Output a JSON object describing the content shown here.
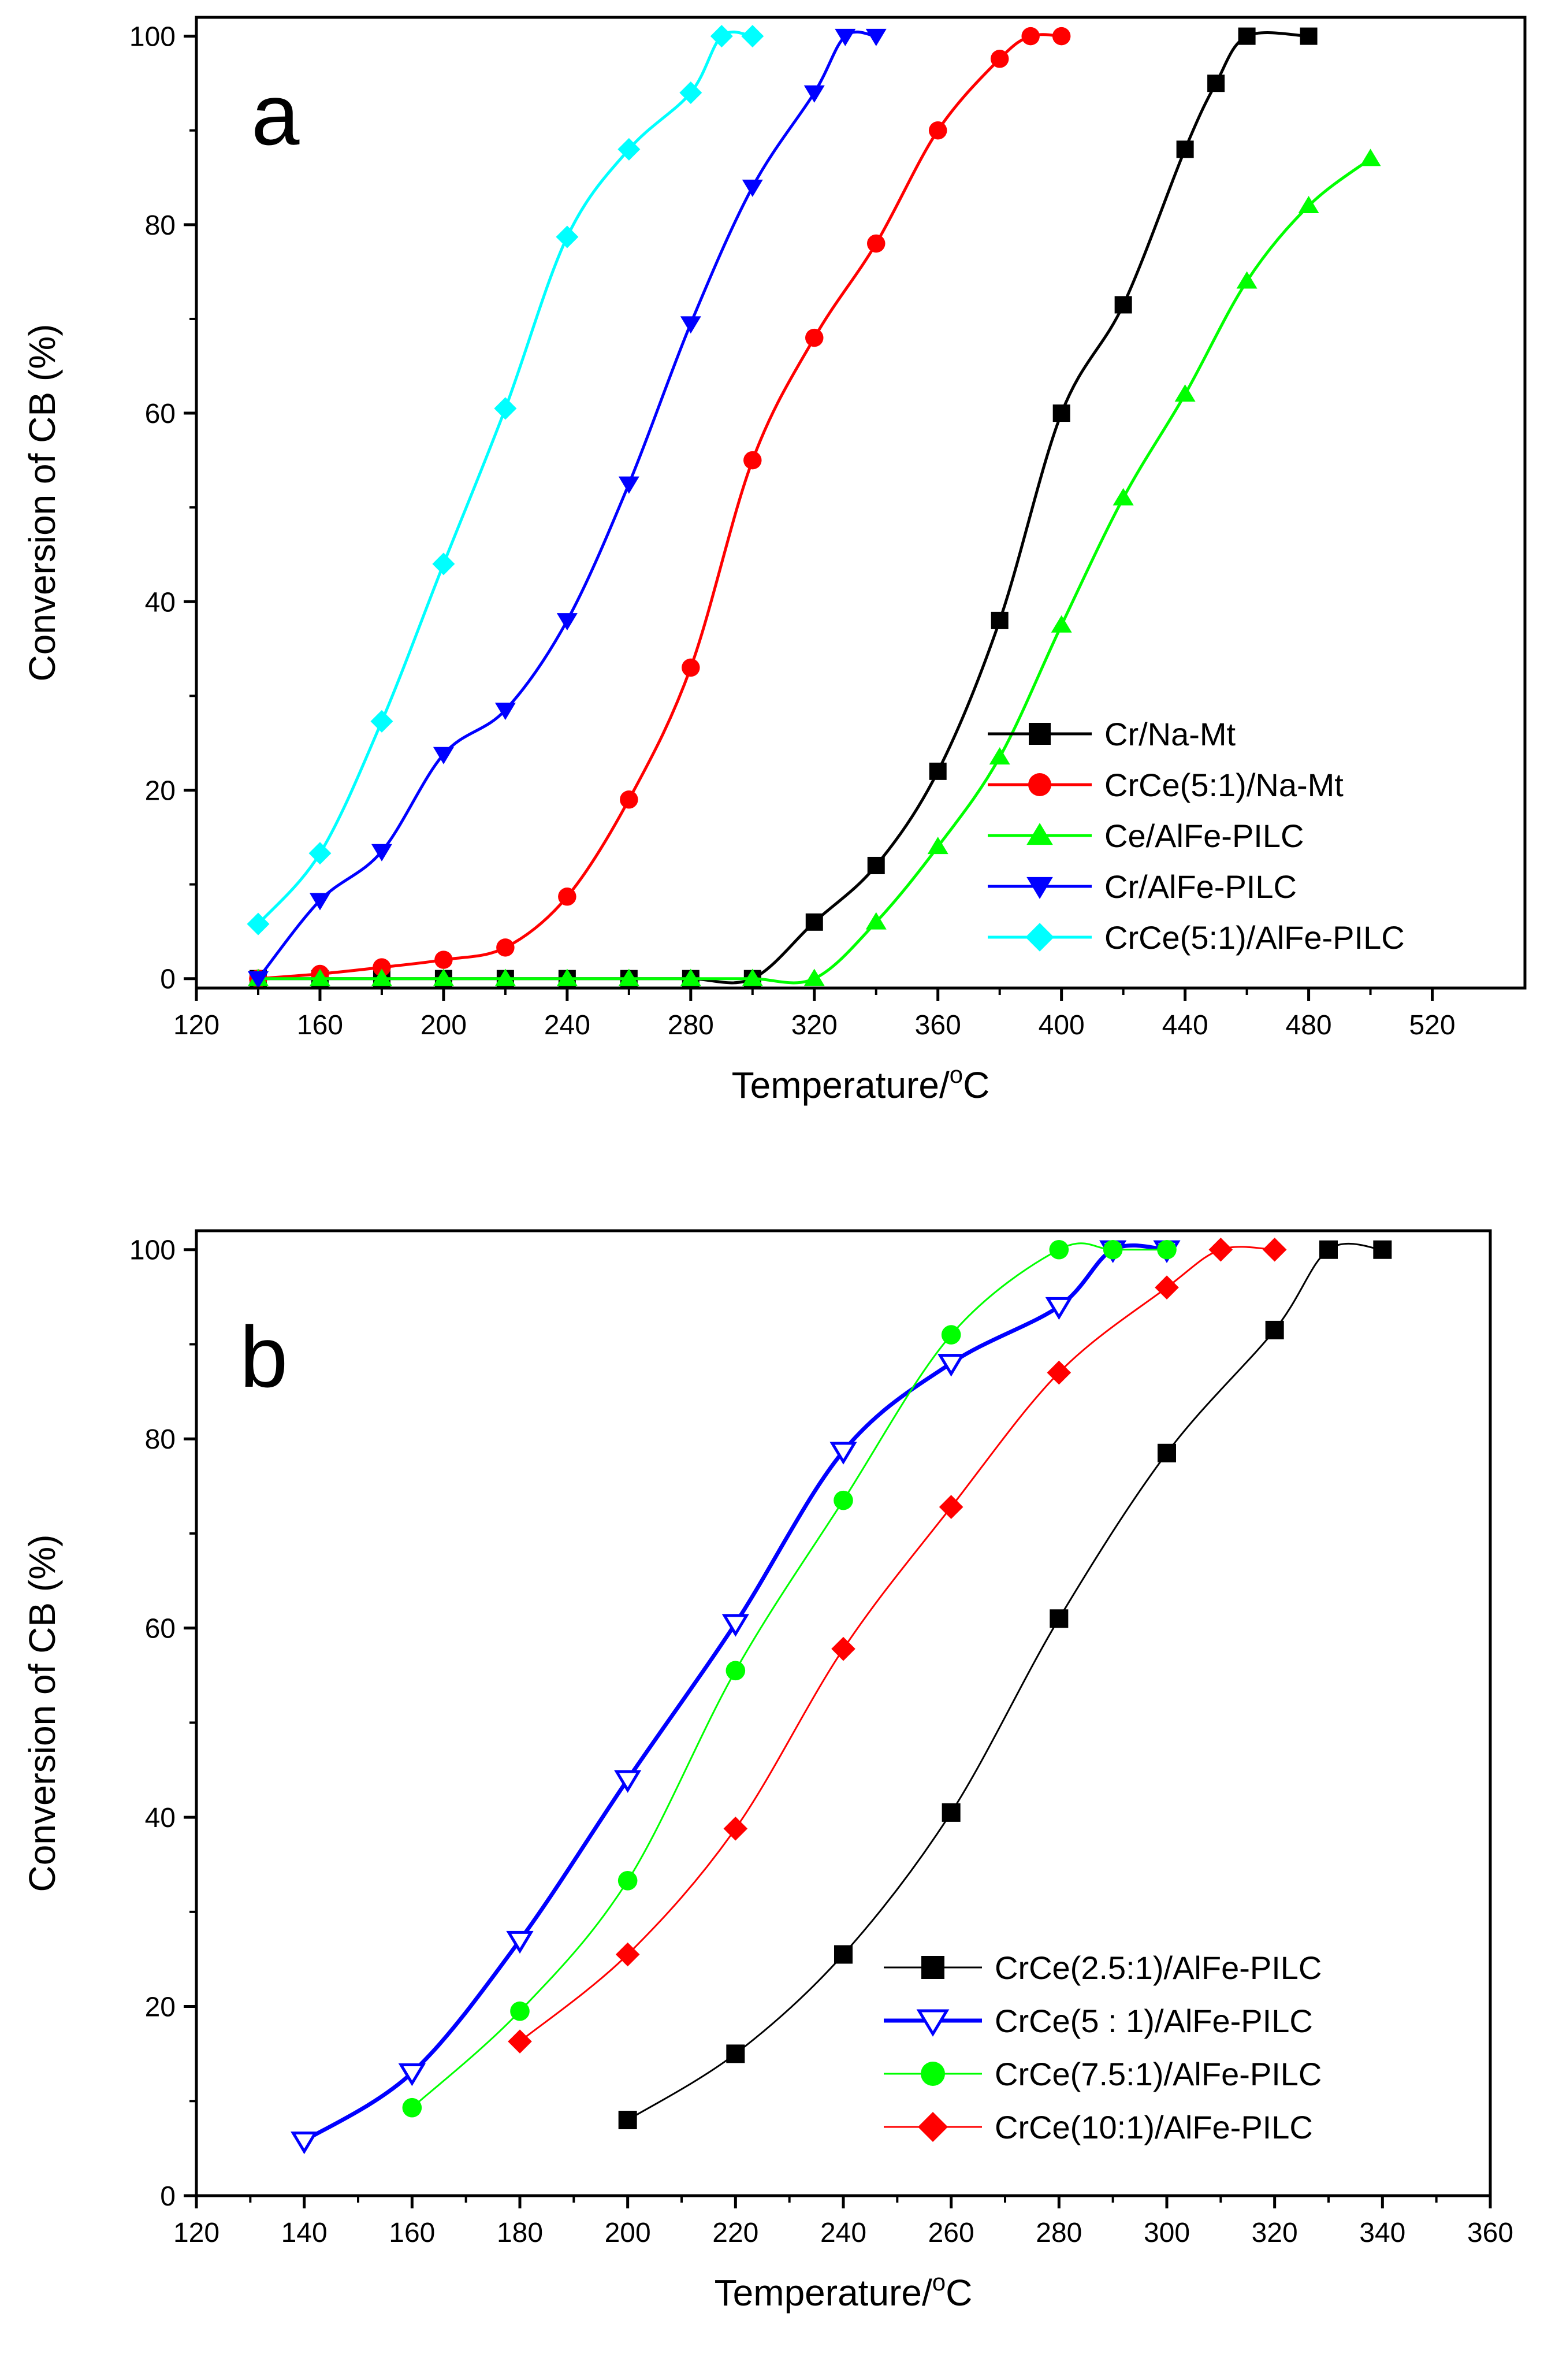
{
  "chart_data": [
    {
      "type": "line",
      "panel_label": "a",
      "xlabel": "Temperature/",
      "xlabel_sup": "o",
      "xlabel_unit": "C",
      "ylabel": "Conversion of CB (%)",
      "xlim": [
        120,
        550
      ],
      "ylim": [
        -1,
        102
      ],
      "x_ticks": [
        120,
        160,
        200,
        240,
        280,
        320,
        360,
        400,
        440,
        480,
        520
      ],
      "x_tick_labels": [
        "120",
        "160",
        "200",
        "240",
        "280",
        "320",
        "360",
        "400",
        "440",
        "480",
        "520"
      ],
      "y_ticks": [
        0,
        20,
        40,
        60,
        80,
        100
      ],
      "y_tick_labels": [
        "0",
        "20",
        "40",
        "60",
        "80",
        "100"
      ],
      "grid": false,
      "legend_position": "bottom-right",
      "series": [
        {
          "name": "Cr/Na-Mt",
          "color": "#000000",
          "marker": "square",
          "filled": true,
          "line_width": 5,
          "points": [
            [
              140,
              0
            ],
            [
              160,
              0
            ],
            [
              180,
              0
            ],
            [
              200,
              0
            ],
            [
              220,
              0
            ],
            [
              240,
              0
            ],
            [
              260,
              0
            ],
            [
              280,
              0
            ],
            [
              300,
              0
            ],
            [
              320,
              6
            ],
            [
              340,
              12
            ],
            [
              360,
              22
            ],
            [
              380,
              38
            ],
            [
              400,
              60
            ],
            [
              420,
              71.5
            ],
            [
              440,
              88
            ],
            [
              450,
              95
            ],
            [
              460,
              100
            ],
            [
              480,
              100
            ]
          ]
        },
        {
          "name": "CrCe(5:1)/Na-Mt",
          "color": "#ff0000",
          "marker": "circle",
          "filled": true,
          "line_width": 5,
          "points": [
            [
              140,
              0
            ],
            [
              160,
              0.5
            ],
            [
              180,
              1.2
            ],
            [
              200,
              2
            ],
            [
              220,
              3.3
            ],
            [
              240,
              8.7
            ],
            [
              260,
              19
            ],
            [
              280,
              33
            ],
            [
              300,
              55
            ],
            [
              320,
              68
            ],
            [
              340,
              78
            ],
            [
              360,
              90
            ],
            [
              380,
              97.6
            ],
            [
              390,
              100
            ],
            [
              400,
              100
            ]
          ]
        },
        {
          "name": "Ce/AlFe-PILC",
          "color": "#00ff00",
          "marker": "triangle-up",
          "filled": true,
          "line_width": 5,
          "points": [
            [
              140,
              0
            ],
            [
              160,
              0
            ],
            [
              180,
              0
            ],
            [
              200,
              0
            ],
            [
              220,
              0
            ],
            [
              240,
              0
            ],
            [
              260,
              0
            ],
            [
              280,
              0
            ],
            [
              300,
              0
            ],
            [
              320,
              0
            ],
            [
              340,
              6
            ],
            [
              360,
              14
            ],
            [
              380,
              23.5
            ],
            [
              400,
              37.5
            ],
            [
              420,
              51
            ],
            [
              440,
              62
            ],
            [
              460,
              74
            ],
            [
              480,
              82
            ],
            [
              500,
              87
            ]
          ]
        },
        {
          "name": "Cr/AlFe-PILC",
          "color": "#0000ff",
          "marker": "triangle-down",
          "filled": true,
          "line_width": 5,
          "points": [
            [
              140,
              0
            ],
            [
              160,
              8.3
            ],
            [
              180,
              13.5
            ],
            [
              200,
              23.8
            ],
            [
              220,
              28.5
            ],
            [
              240,
              38
            ],
            [
              260,
              52.5
            ],
            [
              280,
              69.5
            ],
            [
              300,
              84
            ],
            [
              320,
              94
            ],
            [
              330,
              100
            ],
            [
              340,
              100
            ]
          ]
        },
        {
          "name": "CrCe(5:1)/AlFe-PILC",
          "color": "#00ffff",
          "marker": "diamond",
          "filled": true,
          "line_width": 5,
          "points": [
            [
              140,
              5.8
            ],
            [
              160,
              13.3
            ],
            [
              180,
              27.3
            ],
            [
              200,
              44
            ],
            [
              220,
              60.5
            ],
            [
              240,
              78.7
            ],
            [
              260,
              88
            ],
            [
              280,
              94
            ],
            [
              290,
              100
            ],
            [
              300,
              100
            ]
          ]
        }
      ]
    },
    {
      "type": "line",
      "panel_label": "b",
      "xlabel": "Temperature/",
      "xlabel_sup": "o",
      "xlabel_unit": "C",
      "ylabel": "Conversion of CB (%)",
      "xlim": [
        120,
        360
      ],
      "ylim": [
        0,
        102
      ],
      "x_ticks": [
        120,
        140,
        160,
        180,
        200,
        220,
        240,
        260,
        280,
        300,
        320,
        340,
        360
      ],
      "x_tick_labels": [
        "120",
        "140",
        "160",
        "180",
        "200",
        "220",
        "240",
        "260",
        "280",
        "300",
        "320",
        "340",
        "360"
      ],
      "y_ticks": [
        0,
        20,
        40,
        60,
        80,
        100
      ],
      "y_tick_labels": [
        "0",
        "20",
        "40",
        "60",
        "80",
        "100"
      ],
      "grid": false,
      "legend_position": "bottom-right",
      "series": [
        {
          "name": "CrCe(2.5:1)/AlFe-PILC",
          "color": "#000000",
          "marker": "square",
          "filled": true,
          "line_width": 3,
          "points": [
            [
              200,
              8
            ],
            [
              220,
              15
            ],
            [
              240,
              25.5
            ],
            [
              260,
              40.5
            ],
            [
              280,
              61
            ],
            [
              300,
              78.5
            ],
            [
              320,
              91.5
            ],
            [
              330,
              100
            ],
            [
              340,
              100
            ]
          ]
        },
        {
          "name": "CrCe(5 : 1)/AlFe-PILC",
          "color": "#0000ff",
          "marker": "triangle-down",
          "filled": false,
          "line_width": 7,
          "points": [
            [
              140,
              5.8
            ],
            [
              160,
              13
            ],
            [
              180,
              27
            ],
            [
              200,
              44
            ],
            [
              220,
              60.5
            ],
            [
              240,
              78.7
            ],
            [
              260,
              88
            ],
            [
              280,
              94
            ],
            [
              290,
              100
            ],
            [
              300,
              100
            ]
          ]
        },
        {
          "name": "CrCe(7.5:1)/AlFe-PILC",
          "color": "#00ff00",
          "marker": "circle",
          "filled": true,
          "line_width": 3,
          "points": [
            [
              160,
              9.3
            ],
            [
              180,
              19.5
            ],
            [
              200,
              33.3
            ],
            [
              220,
              55.5
            ],
            [
              240,
              73.5
            ],
            [
              260,
              91
            ],
            [
              280,
              100
            ],
            [
              290,
              100
            ],
            [
              300,
              100
            ]
          ]
        },
        {
          "name": "CrCe(10:1)/AlFe-PILC",
          "color": "#ff0000",
          "marker": "diamond",
          "filled": true,
          "line_width": 3,
          "points": [
            [
              180,
              16.3
            ],
            [
              200,
              25.5
            ],
            [
              220,
              38.8
            ],
            [
              240,
              57.8
            ],
            [
              260,
              72.8
            ],
            [
              280,
              87
            ],
            [
              300,
              96
            ],
            [
              310,
              100
            ],
            [
              320,
              100
            ]
          ]
        }
      ]
    }
  ]
}
